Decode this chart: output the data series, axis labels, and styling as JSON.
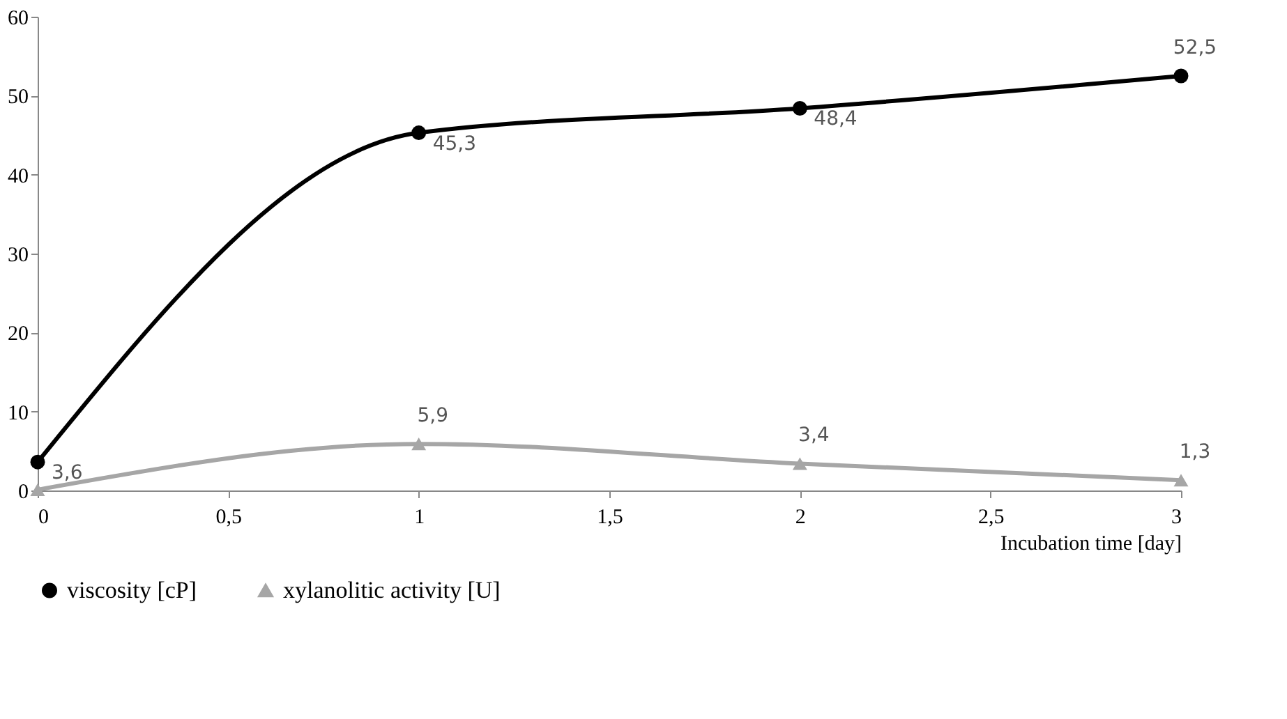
{
  "chart_data": {
    "type": "line",
    "xlabel": "Incubation time [day]",
    "x": [
      0,
      1,
      2,
      3
    ],
    "series": [
      {
        "name": "viscosity [cP]",
        "color": "#000000",
        "marker": "circle",
        "values": [
          3.6,
          45.3,
          48.4,
          52.5
        ],
        "value_labels": [
          "3,6",
          "45,3",
          "48,4",
          "52,5"
        ]
      },
      {
        "name": "xylanolitic activity [U]",
        "color": "#a6a6a6",
        "marker": "triangle",
        "values": [
          0.1,
          5.9,
          3.4,
          1.3
        ],
        "value_labels": [
          null,
          "5,9",
          "3,4",
          "1,3"
        ]
      }
    ],
    "xlim": [
      0,
      3
    ],
    "xticks": [
      0,
      {
        "value": 0.5,
        "label": "0,5"
      },
      1,
      {
        "value": 1.5,
        "label": "1,5"
      },
      2,
      {
        "value": 2.5,
        "label": "2,5"
      },
      3
    ],
    "ylim": [
      0,
      60
    ],
    "yticks": [
      0,
      10,
      20,
      30,
      40,
      50,
      60
    ],
    "legend": "bottom",
    "line_style": "solid"
  }
}
